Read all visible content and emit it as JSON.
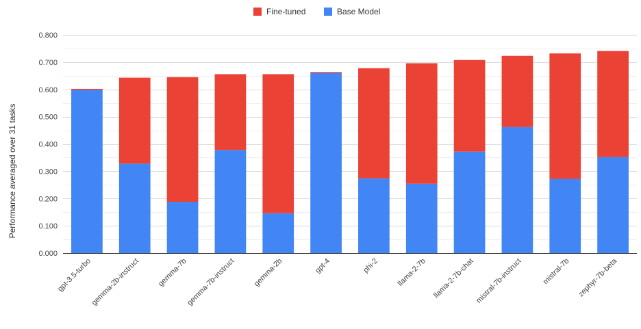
{
  "chart_data": {
    "type": "bar",
    "stacked": true,
    "title": "",
    "xlabel": "",
    "ylabel": "Performance averaged over 31 tasks",
    "ylim": [
      0,
      0.8
    ],
    "ytick_step": 0.1,
    "ytick_labels": [
      "0.000",
      "0.100",
      "0.200",
      "0.300",
      "0.400",
      "0.500",
      "0.600",
      "0.700",
      "0.800"
    ],
    "grid": true,
    "legend_position": "top-center",
    "categories": [
      "gpt-3.5-turbo",
      "gemma-2b-instruct",
      "gemma-7b",
      "gemma-7b-instruct",
      "gemma-2b",
      "gpt-4",
      "phi-2",
      "llama-2-7b",
      "llama-2-7b-chat",
      "mistral-7b-instruct",
      "mistral-7b",
      "zephyr-7b-beta"
    ],
    "series": [
      {
        "name": "Base Model",
        "color": "#4285f4",
        "values": [
          0.598,
          0.328,
          0.188,
          0.378,
          0.146,
          0.66,
          0.274,
          0.254,
          0.372,
          0.462,
          0.272,
          0.352
        ]
      },
      {
        "name": "Fine-tuned",
        "color": "#ea4335",
        "values": [
          0.004,
          0.315,
          0.457,
          0.278,
          0.51,
          0.004,
          0.404,
          0.442,
          0.336,
          0.261,
          0.46,
          0.389
        ]
      }
    ],
    "legend_order": [
      "Fine-tuned",
      "Base Model"
    ]
  }
}
